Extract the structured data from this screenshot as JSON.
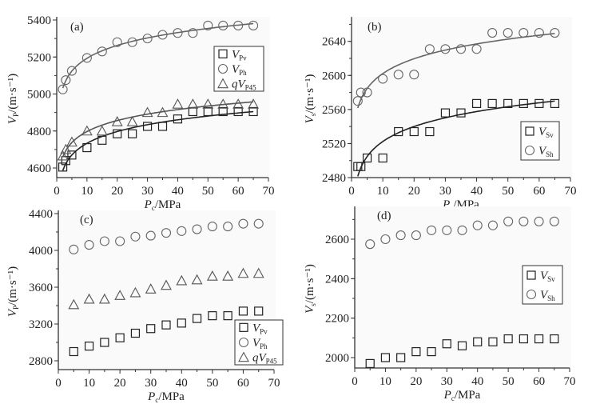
{
  "chart_data": [
    {
      "id": "a",
      "type": "scatter",
      "panel_label": "(a)",
      "xlabel": "P_c/MPa",
      "ylabel": "V_P/(m·s⁻¹)",
      "xlim": [
        0,
        70
      ],
      "ylim": [
        4600,
        5400
      ],
      "xticks": [
        0,
        10,
        20,
        30,
        40,
        50,
        60,
        70
      ],
      "yticks": [
        4600,
        4800,
        5000,
        5200,
        5400
      ],
      "legend_position": "upper-right",
      "x": [
        2,
        3,
        5,
        10,
        15,
        20,
        25,
        30,
        35,
        40,
        45,
        50,
        55,
        60,
        65
      ],
      "series": [
        {
          "name": "V_Pv",
          "legend_main": "V",
          "legend_sub": "Pv",
          "legend_prefix": "",
          "marker": "square",
          "color": "#222222",
          "fit": true,
          "values": [
            4605,
            4640,
            4670,
            4710,
            4750,
            4785,
            4785,
            4825,
            4825,
            4865,
            4905,
            4905,
            4905,
            4905,
            4905
          ]
        },
        {
          "name": "V_Ph",
          "legend_main": "V",
          "legend_sub": "Ph",
          "legend_prefix": "",
          "marker": "circle",
          "color": "#666666",
          "fit": true,
          "values": [
            5025,
            5075,
            5125,
            5195,
            5230,
            5280,
            5280,
            5300,
            5320,
            5330,
            5330,
            5370,
            5370,
            5370,
            5370
          ]
        },
        {
          "name": "qV_P45",
          "legend_main": "V",
          "legend_sub": "P45",
          "legend_prefix": "q",
          "marker": "triangle",
          "color": "#555555",
          "fit": true,
          "values": [
            4665,
            4700,
            4740,
            4800,
            4800,
            4850,
            4850,
            4900,
            4900,
            4945,
            4945,
            4945,
            4945,
            4945,
            4945
          ]
        }
      ]
    },
    {
      "id": "b",
      "type": "scatter",
      "panel_label": "(b)",
      "xlabel": "P_c/MPa",
      "ylabel": "V_s/(m·s⁻¹)",
      "xlim": [
        0,
        70
      ],
      "ylim": [
        2480,
        2665
      ],
      "xticks": [
        0,
        10,
        20,
        30,
        40,
        50,
        60,
        70
      ],
      "yticks": [
        2480,
        2520,
        2560,
        2600,
        2640
      ],
      "legend_position": "lower-right",
      "x": [
        2,
        3,
        5,
        10,
        15,
        20,
        25,
        30,
        35,
        40,
        45,
        50,
        55,
        60,
        65
      ],
      "series": [
        {
          "name": "V_Sv",
          "legend_main": "V",
          "legend_sub": "Sv",
          "legend_prefix": "",
          "marker": "square",
          "color": "#222222",
          "fit": true,
          "values": [
            2493,
            2493,
            2503,
            2503,
            2534,
            2534,
            2534,
            2556,
            2556,
            2567,
            2567,
            2567,
            2567,
            2567,
            2567
          ]
        },
        {
          "name": "V_Sh",
          "legend_main": "V",
          "legend_sub": "Sh",
          "legend_prefix": "",
          "marker": "circle",
          "color": "#666666",
          "fit": true,
          "values": [
            2570,
            2580,
            2580,
            2596,
            2601,
            2601,
            2631,
            2631,
            2631,
            2631,
            2650,
            2650,
            2650,
            2650,
            2650
          ]
        }
      ]
    },
    {
      "id": "c",
      "type": "scatter",
      "panel_label": "(c)",
      "xlabel": "P_c/MPa",
      "ylabel": "V_P/(m·s⁻¹)",
      "xlim": [
        0,
        70
      ],
      "ylim": [
        2700,
        4400
      ],
      "xticks": [
        0,
        10,
        20,
        30,
        40,
        50,
        60,
        70
      ],
      "yticks": [
        2800,
        3200,
        3600,
        4000,
        4400
      ],
      "legend_position": "lower-right",
      "x": [
        5,
        10,
        15,
        20,
        25,
        30,
        35,
        40,
        45,
        50,
        55,
        60,
        65
      ],
      "series": [
        {
          "name": "V_Pv",
          "legend_main": "V",
          "legend_sub": "Pv",
          "legend_prefix": "",
          "marker": "square",
          "color": "#222222",
          "fit": false,
          "values": [
            2900,
            2960,
            3000,
            3050,
            3100,
            3150,
            3190,
            3210,
            3260,
            3290,
            3290,
            3340,
            3340
          ]
        },
        {
          "name": "V_Ph",
          "legend_main": "V",
          "legend_sub": "Ph",
          "legend_prefix": "",
          "marker": "circle",
          "color": "#666666",
          "fit": false,
          "values": [
            4010,
            4060,
            4100,
            4100,
            4150,
            4160,
            4190,
            4210,
            4230,
            4260,
            4260,
            4290,
            4290
          ]
        },
        {
          "name": "qV_P45",
          "legend_main": "V",
          "legend_sub": "P45",
          "legend_prefix": "q",
          "marker": "triangle",
          "color": "#555555",
          "fit": false,
          "values": [
            3410,
            3470,
            3470,
            3510,
            3540,
            3580,
            3620,
            3670,
            3680,
            3720,
            3720,
            3750,
            3750
          ]
        }
      ]
    },
    {
      "id": "d",
      "type": "scatter",
      "panel_label": "(d)",
      "xlabel": "P_c/MPa",
      "ylabel": "V_s/(m·s⁻¹)",
      "xlim": [
        0,
        70
      ],
      "ylim": [
        1950,
        2750
      ],
      "xticks": [
        0,
        10,
        20,
        30,
        40,
        50,
        60,
        70
      ],
      "yticks": [
        2000,
        2200,
        2400,
        2600
      ],
      "legend_position": "center-right",
      "x": [
        5,
        10,
        15,
        20,
        25,
        30,
        35,
        40,
        45,
        50,
        55,
        60,
        65
      ],
      "series": [
        {
          "name": "V_Sv",
          "legend_main": "V",
          "legend_sub": "Sv",
          "legend_prefix": "",
          "marker": "square",
          "color": "#222222",
          "fit": false,
          "values": [
            1970,
            2000,
            2000,
            2030,
            2030,
            2070,
            2060,
            2080,
            2080,
            2095,
            2095,
            2095,
            2095
          ]
        },
        {
          "name": "V_Sh",
          "legend_main": "V",
          "legend_sub": "Sh",
          "legend_prefix": "",
          "marker": "circle",
          "color": "#666666",
          "fit": false,
          "values": [
            2575,
            2600,
            2620,
            2620,
            2645,
            2645,
            2645,
            2670,
            2670,
            2690,
            2690,
            2690,
            2690
          ]
        }
      ]
    }
  ]
}
